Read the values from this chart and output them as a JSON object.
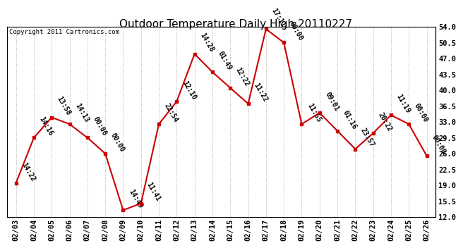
{
  "title": "Outdoor Temperature Daily High 20110227",
  "copyright": "Copyright 2011 Cartronics.com",
  "dates": [
    "02/03",
    "02/04",
    "02/05",
    "02/06",
    "02/07",
    "02/08",
    "02/09",
    "02/10",
    "02/11",
    "02/12",
    "02/13",
    "02/14",
    "02/15",
    "02/16",
    "02/17",
    "02/18",
    "02/19",
    "02/20",
    "02/21",
    "02/22",
    "02/23",
    "02/24",
    "02/25",
    "02/26"
  ],
  "values": [
    19.5,
    29.5,
    34.0,
    32.5,
    29.5,
    26.0,
    13.5,
    15.0,
    32.5,
    37.5,
    48.0,
    44.0,
    40.5,
    37.0,
    53.5,
    50.5,
    32.5,
    35.0,
    31.0,
    27.0,
    30.5,
    34.5,
    32.5,
    25.5
  ],
  "labels": [
    "14:22",
    "14:16",
    "13:58",
    "14:13",
    "00:00",
    "00:00",
    "14:49",
    "11:41",
    "22:54",
    "12:10",
    "14:28",
    "01:49",
    "12:22",
    "11:22",
    "17:11",
    "00:00",
    "11:55",
    "09:01",
    "01:16",
    "23:57",
    "20:22",
    "11:19",
    "00:00",
    "00:00"
  ],
  "ylim_min": 12.0,
  "ylim_max": 54.0,
  "yticks": [
    12.0,
    15.5,
    19.0,
    22.5,
    26.0,
    29.5,
    33.0,
    36.5,
    40.0,
    43.5,
    47.0,
    50.5,
    54.0
  ],
  "line_color": "#cc0000",
  "marker_color": "#cc0000",
  "bg_color": "#ffffff",
  "grid_color": "#aaaaaa",
  "title_fontsize": 11,
  "label_fontsize": 7,
  "tick_fontsize": 7.5,
  "copyright_fontsize": 6.5
}
